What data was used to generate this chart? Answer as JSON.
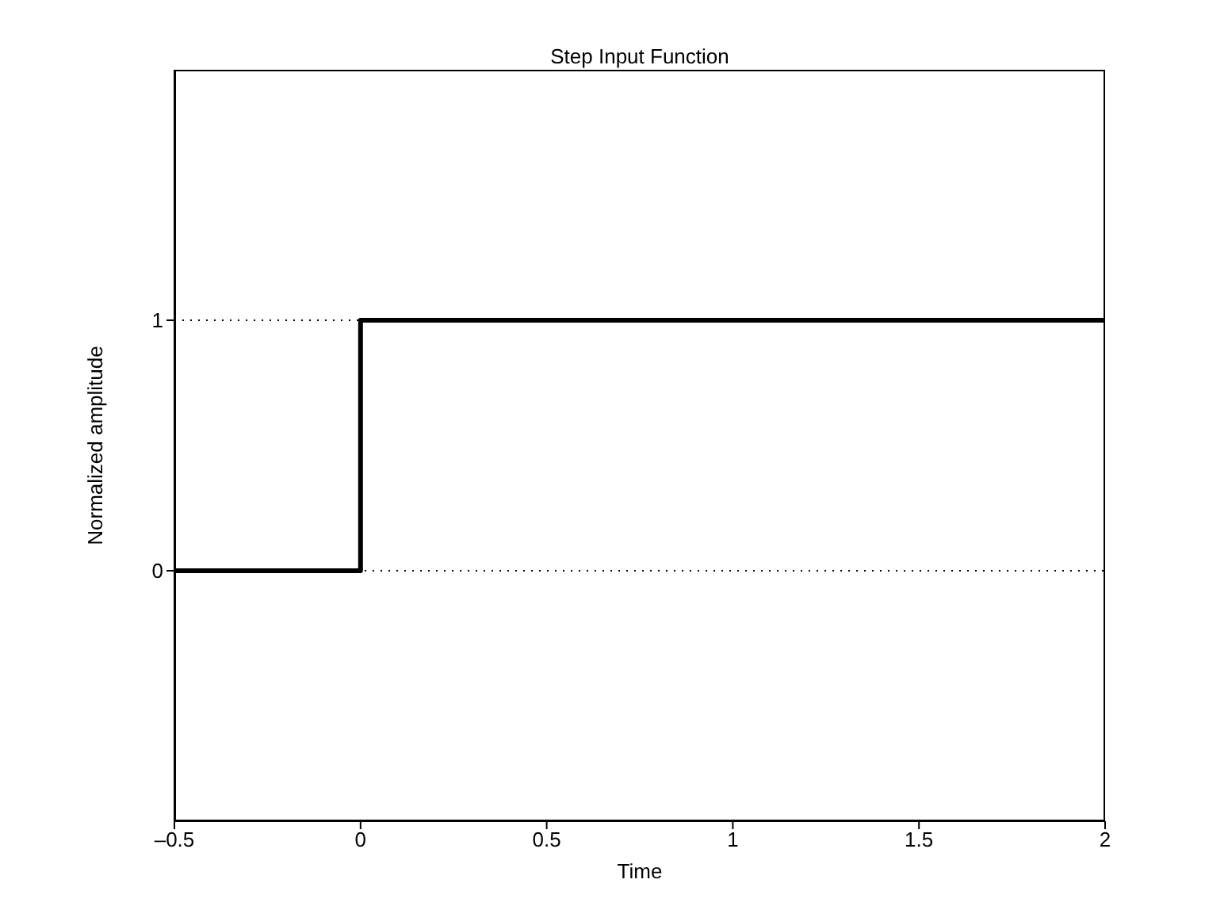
{
  "chart_data": {
    "type": "step",
    "title": "Step Input Function",
    "xlabel": "Time",
    "ylabel": "Normalized amplitude",
    "x": [
      -0.5,
      0,
      2
    ],
    "series": [
      {
        "color": "#000000",
        "values": [
          0,
          1,
          1
        ]
      }
    ],
    "xlim": [
      -0.5,
      2
    ],
    "xticks": [
      {
        "value": -0.5,
        "label": "–0.5"
      },
      0,
      0.5,
      1,
      1.5,
      2
    ],
    "ylim": [
      -1,
      2
    ],
    "yticks": [
      0,
      1
    ],
    "grid": "y"
  }
}
